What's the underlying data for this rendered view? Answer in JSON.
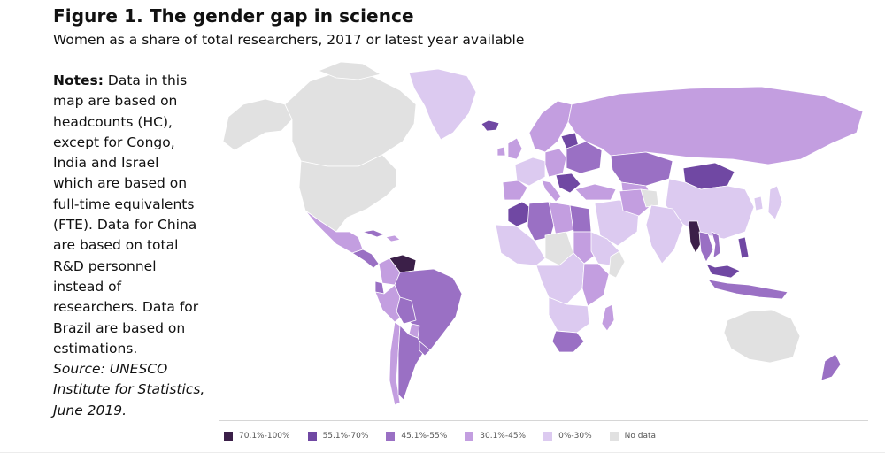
{
  "figure": {
    "title": "Figure 1.  The gender gap in science",
    "subtitle": "Women as a share of total researchers, 2017 or latest year available"
  },
  "notes": {
    "label": "Notes:",
    "text_lines": [
      "Data in this",
      "map are based on",
      "headcounts (HC),",
      "except for Congo,",
      "India and Israel",
      "which are based on",
      "full-time equivalents",
      "(FTE). Data for China",
      "are based on total",
      "R&D personnel",
      "instead of",
      "researchers. Data for",
      "Brazil are based on",
      "estimations."
    ],
    "source_lines": [
      "Source: UNESCO",
      "Institute for Statistics,",
      "June 2019."
    ]
  },
  "legend": [
    {
      "label": "70.1%-100%",
      "color": "#3b1f48"
    },
    {
      "label": "55.1%-70%",
      "color": "#7048a3"
    },
    {
      "label": "45.1%-55%",
      "color": "#9a70c4"
    },
    {
      "label": "30.1%-45%",
      "color": "#c39ee0"
    },
    {
      "label": "0%-30%",
      "color": "#dccaf0"
    },
    {
      "label": "No data",
      "color": "#e1e1e1"
    }
  ],
  "colors": {
    "no_data": "#e1e1e1",
    "c0_30": "#dccaf0",
    "c30_45": "#c39ee0",
    "c45_55": "#9a70c4",
    "c55_70": "#7048a3",
    "c70_100": "#3b1f48",
    "border": "#ffffff"
  }
}
